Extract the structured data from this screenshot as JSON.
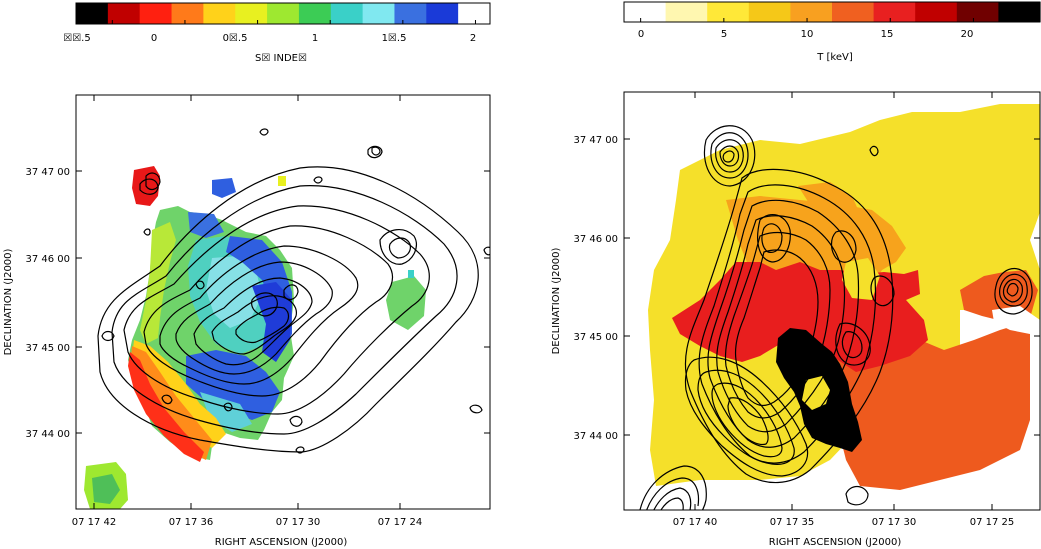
{
  "left_panel": {
    "colorbar": {
      "title": "S☒ INDE☒",
      "tick_labels": [
        "☒☒.5",
        "0",
        "0☒.5",
        "1",
        "1☒.5",
        "2"
      ],
      "tick_values": [
        -0.5,
        0,
        0.5,
        1,
        1.5,
        2
      ],
      "range": [
        -0.75,
        2.1
      ]
    },
    "xlabel": "RIGHT ASCENSION  (J2000)",
    "ylabel": "DECLINATION  (J2000)",
    "x_tick_labels": [
      "07 17 42",
      "07 17 36",
      "07 17 30",
      "07 17 24"
    ],
    "y_tick_labels": [
      "37 47 00",
      "37 46 00",
      "37 45 00",
      "37 44 00"
    ]
  },
  "right_panel": {
    "colorbar": {
      "title": "T [keV]",
      "tick_labels": [
        "0",
        "5",
        "10",
        "15",
        "20"
      ],
      "tick_values": [
        0,
        5,
        10,
        15,
        20
      ],
      "range": [
        -1,
        24
      ]
    },
    "xlabel": "RIGHT ASCENSION  (J2000)",
    "ylabel": "DECLINATION  (J2000)",
    "x_tick_labels": [
      "07 17 40",
      "07 17 35",
      "07 17 30",
      "07 17 25"
    ],
    "y_tick_labels": [
      "37 47 00",
      "37 46 00",
      "37 45 00",
      "37 44 00"
    ]
  },
  "chart_data": [
    {
      "type": "heatmap",
      "title": "",
      "xlabel": "RIGHT ASCENSION  (J2000)",
      "ylabel": "DECLINATION  (J2000)",
      "colorbar_label": "S☒ INDE☒",
      "colorbar_range": [
        -0.75,
        2.1
      ],
      "colorbar_ticks": [
        -0.5,
        0,
        0.5,
        1,
        1.5,
        2
      ],
      "colormap": [
        "#000000",
        "#c00000",
        "#ff2010",
        "#ff7a1a",
        "#ffd21a",
        "#e8f020",
        "#9ee830",
        "#3ccc55",
        "#3ad0c8",
        "#80e8f0",
        "#3a70e0",
        "#1a3ad8",
        "#ffffff"
      ],
      "x_ticks": [
        "07 17 42",
        "07 17 36",
        "07 17 30",
        "07 17 24"
      ],
      "y_ticks": [
        "37 47 00",
        "37 46 00",
        "37 45 00",
        "37 44 00"
      ],
      "grid": false,
      "overlay": "radio contours"
    },
    {
      "type": "heatmap",
      "title": "",
      "xlabel": "RIGHT ASCENSION  (J2000)",
      "ylabel": "DECLINATION  (J2000)",
      "colorbar_label": "T [keV]",
      "colorbar_range": [
        -1,
        24
      ],
      "colorbar_ticks": [
        0,
        5,
        10,
        15,
        20
      ],
      "colormap": [
        "#ffffff",
        "#fff7b0",
        "#ffe838",
        "#f5c818",
        "#f8a020",
        "#f06020",
        "#e82020",
        "#c00000",
        "#700000",
        "#000000"
      ],
      "temperature_regions_keV": [
        7,
        10,
        13,
        15,
        24
      ],
      "x_ticks": [
        "07 17 40",
        "07 17 35",
        "07 17 30",
        "07 17 25"
      ],
      "y_ticks": [
        "37 47 00",
        "37 46 00",
        "37 45 00",
        "37 44 00"
      ],
      "grid": false,
      "overlay": "radio contours"
    }
  ]
}
